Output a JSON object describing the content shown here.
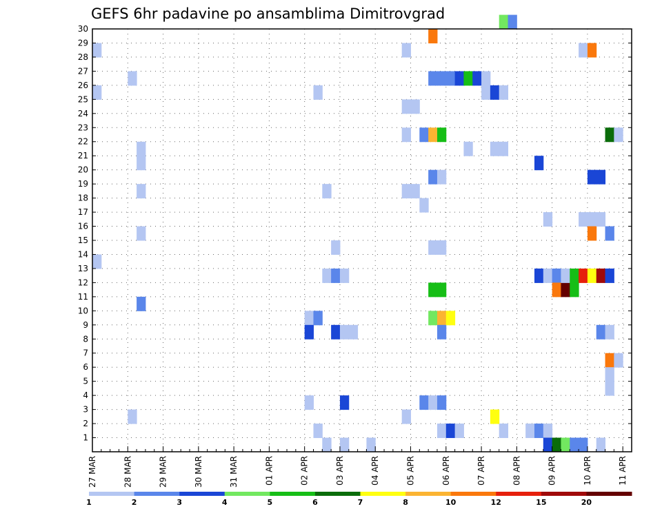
{
  "chart_data": {
    "type": "heatmap",
    "title": "GEFS 6hr padavine po ansamblima Dimitrovgrad",
    "xlabel": "",
    "ylabel": "",
    "x_tick_labels": [
      "27 MAR",
      "28 MAR",
      "29 MAR",
      "30 MAR",
      "31 MAR",
      "01 APR",
      "02 APR",
      "03 APR",
      "04 APR",
      "05 APR",
      "06 APR",
      "07 APR",
      "08 APR",
      "09 APR",
      "10 APR",
      "11 APR"
    ],
    "x_range_steps": [
      0,
      61
    ],
    "steps_per_day": 4,
    "y_tick_labels": [
      "1",
      "2",
      "3",
      "4",
      "5",
      "6",
      "7",
      "8",
      "9",
      "10",
      "11",
      "12",
      "13",
      "14",
      "15",
      "16",
      "17",
      "18",
      "19",
      "20",
      "21",
      "22",
      "23",
      "24",
      "25",
      "26",
      "27",
      "28",
      "29",
      "30"
    ],
    "y_range_members": [
      0,
      30
    ],
    "grid": "dotted",
    "colorbar": {
      "position": "bottom",
      "levels": [
        1,
        2,
        3,
        4,
        5,
        6,
        7,
        8,
        10,
        12,
        15,
        20
      ],
      "colors": [
        "#b4c6f2",
        "#5a86ea",
        "#1a46d6",
        "#72e860",
        "#16be16",
        "#0a6c0a",
        "#ffff10",
        "#fbb432",
        "#fa780c",
        "#e6200c",
        "#a00a0a",
        "#640000"
      ]
    },
    "cells": [
      {
        "member": 28,
        "step": 0,
        "cls": 0
      },
      {
        "member": 25,
        "step": 0,
        "cls": 0
      },
      {
        "member": 13,
        "step": 0,
        "cls": 0
      },
      {
        "member": 26,
        "step": 4,
        "cls": 0
      },
      {
        "member": 2,
        "step": 4,
        "cls": 0
      },
      {
        "member": 21,
        "step": 5,
        "cls": 0
      },
      {
        "member": 20,
        "step": 5,
        "cls": 0
      },
      {
        "member": 18,
        "step": 5,
        "cls": 0
      },
      {
        "member": 15,
        "step": 5,
        "cls": 0
      },
      {
        "member": 10,
        "step": 5,
        "cls": 1
      },
      {
        "member": 9,
        "step": 24,
        "cls": 0
      },
      {
        "member": 8,
        "step": 24,
        "cls": 2
      },
      {
        "member": 3,
        "step": 24,
        "cls": 0
      },
      {
        "member": 25,
        "step": 25,
        "cls": 0
      },
      {
        "member": 9,
        "step": 25,
        "cls": 1
      },
      {
        "member": 1,
        "step": 25,
        "cls": 0
      },
      {
        "member": 18,
        "step": 26,
        "cls": 0
      },
      {
        "member": 12,
        "step": 26,
        "cls": 0
      },
      {
        "member": 0,
        "step": 26,
        "cls": 0
      },
      {
        "member": 14,
        "step": 27,
        "cls": 0
      },
      {
        "member": 12,
        "step": 27,
        "cls": 1
      },
      {
        "member": 8,
        "step": 27,
        "cls": 2
      },
      {
        "member": 12,
        "step": 28,
        "cls": 0
      },
      {
        "member": 8,
        "step": 28,
        "cls": 0
      },
      {
        "member": 3,
        "step": 28,
        "cls": 2
      },
      {
        "member": 0,
        "step": 28,
        "cls": 0
      },
      {
        "member": 8,
        "step": 29,
        "cls": 0
      },
      {
        "member": 0,
        "step": 31,
        "cls": 0
      },
      {
        "member": 28,
        "step": 35,
        "cls": 0
      },
      {
        "member": 24,
        "step": 35,
        "cls": 0
      },
      {
        "member": 22,
        "step": 35,
        "cls": 0
      },
      {
        "member": 18,
        "step": 35,
        "cls": 0
      },
      {
        "member": 2,
        "step": 35,
        "cls": 0
      },
      {
        "member": 24,
        "step": 36,
        "cls": 0
      },
      {
        "member": 18,
        "step": 36,
        "cls": 0
      },
      {
        "member": 22,
        "step": 37,
        "cls": 1
      },
      {
        "member": 17,
        "step": 37,
        "cls": 0
      },
      {
        "member": 3,
        "step": 37,
        "cls": 1
      },
      {
        "member": 29,
        "step": 38,
        "cls": 8
      },
      {
        "member": 26,
        "step": 38,
        "cls": 1
      },
      {
        "member": 22,
        "step": 38,
        "cls": 7
      },
      {
        "member": 19,
        "step": 38,
        "cls": 1
      },
      {
        "member": 14,
        "step": 38,
        "cls": 0
      },
      {
        "member": 11,
        "step": 38,
        "cls": 4
      },
      {
        "member": 9,
        "step": 38,
        "cls": 3
      },
      {
        "member": 3,
        "step": 38,
        "cls": 0
      },
      {
        "member": 26,
        "step": 39,
        "cls": 1
      },
      {
        "member": 22,
        "step": 39,
        "cls": 4
      },
      {
        "member": 19,
        "step": 39,
        "cls": 0
      },
      {
        "member": 14,
        "step": 39,
        "cls": 0
      },
      {
        "member": 11,
        "step": 39,
        "cls": 4
      },
      {
        "member": 9,
        "step": 39,
        "cls": 7
      },
      {
        "member": 8,
        "step": 39,
        "cls": 1
      },
      {
        "member": 3,
        "step": 39,
        "cls": 1
      },
      {
        "member": 1,
        "step": 39,
        "cls": 0
      },
      {
        "member": 26,
        "step": 40,
        "cls": 1
      },
      {
        "member": 9,
        "step": 40,
        "cls": 6
      },
      {
        "member": 1,
        "step": 40,
        "cls": 2
      },
      {
        "member": 26,
        "step": 41,
        "cls": 2
      },
      {
        "member": 1,
        "step": 41,
        "cls": 0
      },
      {
        "member": 26,
        "step": 42,
        "cls": 4
      },
      {
        "member": 21,
        "step": 42,
        "cls": 0
      },
      {
        "member": 26,
        "step": 43,
        "cls": 2
      },
      {
        "member": 25,
        "step": 44,
        "cls": 0
      },
      {
        "member": 26,
        "step": 44,
        "cls": 0
      },
      {
        "member": 25,
        "step": 45,
        "cls": 2
      },
      {
        "member": 21,
        "step": 45,
        "cls": 0
      },
      {
        "member": 2,
        "step": 45,
        "cls": 6
      },
      {
        "member": 30,
        "step": 46,
        "cls": 3
      },
      {
        "member": 25,
        "step": 46,
        "cls": 0
      },
      {
        "member": 21,
        "step": 46,
        "cls": 0
      },
      {
        "member": 1,
        "step": 46,
        "cls": 0
      },
      {
        "member": 30,
        "step": 47,
        "cls": 1
      },
      {
        "member": 1,
        "step": 49,
        "cls": 0
      },
      {
        "member": 20,
        "step": 50,
        "cls": 2
      },
      {
        "member": 12,
        "step": 50,
        "cls": 2
      },
      {
        "member": 1,
        "step": 50,
        "cls": 1
      },
      {
        "member": 16,
        "step": 51,
        "cls": 0
      },
      {
        "member": 12,
        "step": 51,
        "cls": 0
      },
      {
        "member": 1,
        "step": 51,
        "cls": 0
      },
      {
        "member": 0,
        "step": 51,
        "cls": 2
      },
      {
        "member": 12,
        "step": 52,
        "cls": 1
      },
      {
        "member": 11,
        "step": 52,
        "cls": 8
      },
      {
        "member": 0,
        "step": 52,
        "cls": 5
      },
      {
        "member": 11,
        "step": 53,
        "cls": 11
      },
      {
        "member": 12,
        "step": 53,
        "cls": 0
      },
      {
        "member": 0,
        "step": 53,
        "cls": 3
      },
      {
        "member": 12,
        "step": 54,
        "cls": 4
      },
      {
        "member": 11,
        "step": 54,
        "cls": 4
      },
      {
        "member": 0,
        "step": 54,
        "cls": 1
      },
      {
        "member": 28,
        "step": 55,
        "cls": 0
      },
      {
        "member": 16,
        "step": 55,
        "cls": 0
      },
      {
        "member": 12,
        "step": 55,
        "cls": 9
      },
      {
        "member": 0,
        "step": 55,
        "cls": 1
      },
      {
        "member": 28,
        "step": 56,
        "cls": 8
      },
      {
        "member": 19,
        "step": 56,
        "cls": 2
      },
      {
        "member": 16,
        "step": 56,
        "cls": 0
      },
      {
        "member": 15,
        "step": 56,
        "cls": 8
      },
      {
        "member": 12,
        "step": 56,
        "cls": 6
      },
      {
        "member": 19,
        "step": 57,
        "cls": 2
      },
      {
        "member": 16,
        "step": 57,
        "cls": 0
      },
      {
        "member": 12,
        "step": 57,
        "cls": 10
      },
      {
        "member": 8,
        "step": 57,
        "cls": 1
      },
      {
        "member": 0,
        "step": 57,
        "cls": 0
      },
      {
        "member": 22,
        "step": 58,
        "cls": 5
      },
      {
        "member": 15,
        "step": 58,
        "cls": 1
      },
      {
        "member": 12,
        "step": 58,
        "cls": 2
      },
      {
        "member": 8,
        "step": 58,
        "cls": 0
      },
      {
        "member": 6,
        "step": 58,
        "cls": 8
      },
      {
        "member": 5,
        "step": 58,
        "cls": 0
      },
      {
        "member": 4,
        "step": 58,
        "cls": 0
      },
      {
        "member": 22,
        "step": 59,
        "cls": 0
      },
      {
        "member": 6,
        "step": 59,
        "cls": 0
      }
    ]
  }
}
